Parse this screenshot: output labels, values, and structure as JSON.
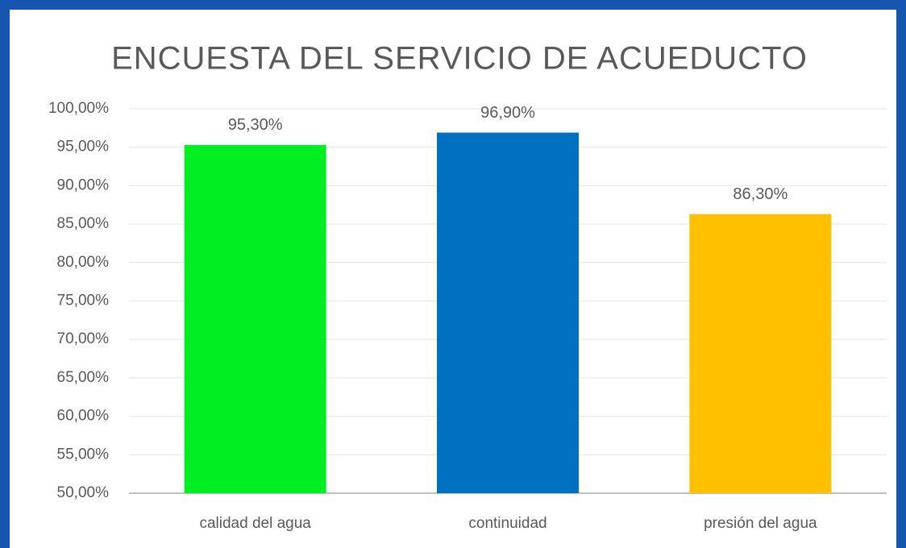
{
  "chart_data": {
    "type": "bar",
    "title": "ENCUESTA DEL SERVICIO DE ACUEDUCTO",
    "categories": [
      "calidad del agua",
      "continuidad",
      "presión del agua"
    ],
    "values": [
      95.3,
      96.9,
      86.3
    ],
    "value_labels": [
      "95,30%",
      "96,90%",
      "86,30%"
    ],
    "colors": [
      "#00ee22",
      "#0070c0",
      "#ffc000"
    ],
    "ylim": [
      50,
      100
    ],
    "yticks": [
      {
        "value": 50,
        "label": "50,00%"
      },
      {
        "value": 55,
        "label": "55,00%"
      },
      {
        "value": 60,
        "label": "60,00%"
      },
      {
        "value": 65,
        "label": "65,00%"
      },
      {
        "value": 70,
        "label": "70,00%"
      },
      {
        "value": 75,
        "label": "75,00%"
      },
      {
        "value": 80,
        "label": "80,00%"
      },
      {
        "value": 85,
        "label": "85,00%"
      },
      {
        "value": 90,
        "label": "90,00%"
      },
      {
        "value": 95,
        "label": "95,00%"
      },
      {
        "value": 100,
        "label": "100,00%"
      }
    ],
    "grid": true
  }
}
